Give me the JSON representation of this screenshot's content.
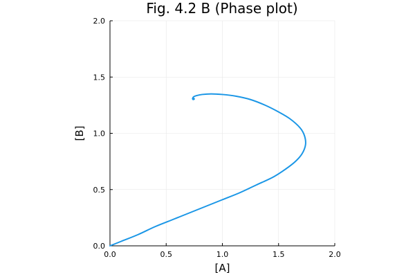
{
  "chart_data": {
    "type": "line",
    "title": "Fig. 4.2 B (Phase plot)",
    "xlabel": "[A]",
    "ylabel": "[B]",
    "xlim": [
      0,
      2
    ],
    "ylim": [
      0,
      2
    ],
    "xticks": [
      "0.0",
      "0.5",
      "1.0",
      "1.5",
      "2.0"
    ],
    "yticks": [
      "0.0",
      "0.5",
      "1.0",
      "1.5",
      "2.0"
    ],
    "grid": true,
    "legend": "none",
    "series": [
      {
        "color": "#1a96e6",
        "x": [
          0.0,
          0.1,
          0.25,
          0.4,
          0.55,
          0.7,
          0.85,
          1.0,
          1.15,
          1.3,
          1.45,
          1.56,
          1.65,
          1.71,
          1.74,
          1.73,
          1.69,
          1.6,
          1.5,
          1.38,
          1.25,
          1.12,
          1.0,
          0.9,
          0.82,
          0.77,
          0.745,
          0.735,
          0.74,
          0.75,
          0.745
        ],
        "y": [
          0.0,
          0.04,
          0.1,
          0.17,
          0.23,
          0.29,
          0.35,
          0.41,
          0.47,
          0.54,
          0.61,
          0.68,
          0.75,
          0.82,
          0.9,
          0.98,
          1.05,
          1.13,
          1.19,
          1.25,
          1.3,
          1.33,
          1.345,
          1.35,
          1.345,
          1.335,
          1.325,
          1.31,
          1.3,
          1.305,
          1.31
        ]
      }
    ]
  }
}
